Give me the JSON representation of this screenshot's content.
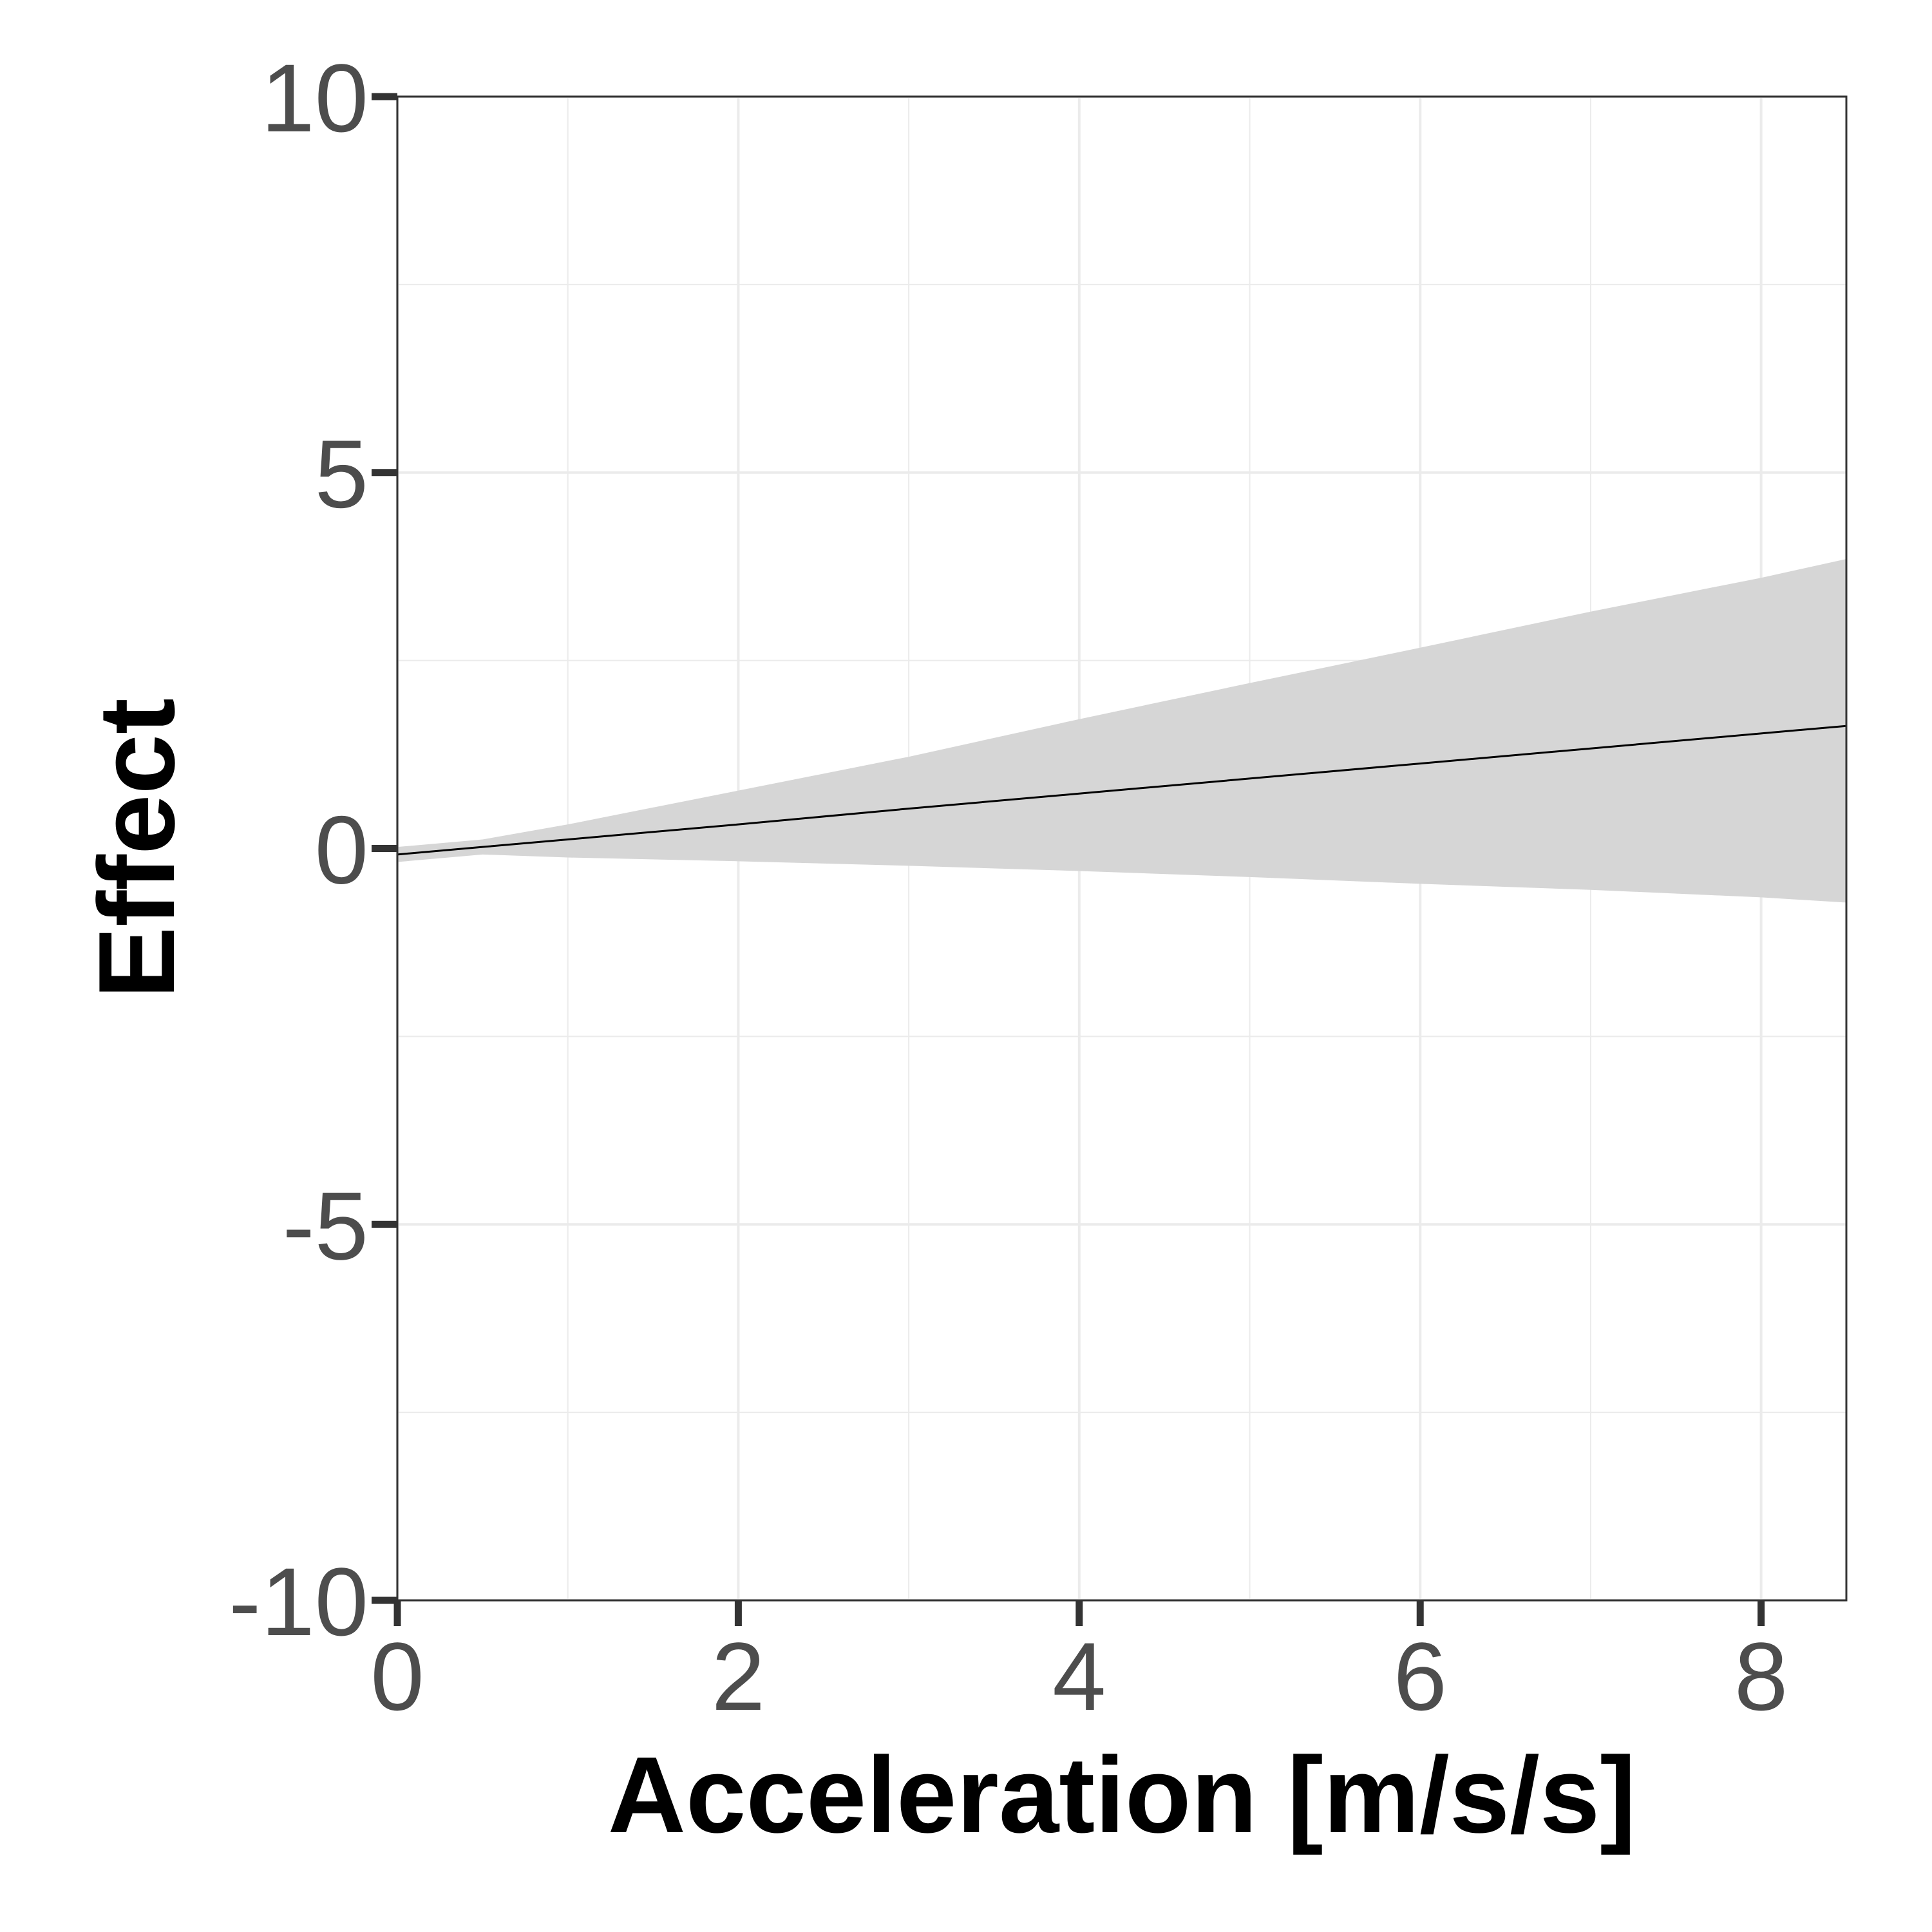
{
  "chart_data": {
    "type": "line",
    "title": "",
    "xlabel": "Acceleration [m/s/s]",
    "ylabel": "Effect",
    "xlim": [
      0,
      8.5
    ],
    "ylim": [
      -10,
      10
    ],
    "x_ticks": [
      0,
      2,
      4,
      6,
      8
    ],
    "y_ticks": [
      -10,
      -5,
      0,
      5,
      10
    ],
    "grid": true,
    "legend": "none",
    "series": [
      {
        "x": [
          0,
          0.5,
          1,
          2,
          3,
          4,
          5,
          6,
          7,
          8,
          8.5
        ],
        "values": [
          -0.08,
          0.02,
          0.12,
          0.32,
          0.53,
          0.73,
          0.93,
          1.13,
          1.33,
          1.53,
          1.63
        ]
      }
    ],
    "confidence_band": {
      "x": [
        0,
        0.5,
        1,
        2,
        3,
        4,
        5,
        6,
        7,
        8,
        8.5
      ],
      "upper": [
        0.02,
        0.12,
        0.32,
        0.77,
        1.22,
        1.72,
        2.2,
        2.67,
        3.15,
        3.6,
        3.85
      ],
      "lower": [
        -0.18,
        -0.08,
        -0.12,
        -0.17,
        -0.23,
        -0.3,
        -0.38,
        -0.47,
        -0.55,
        -0.65,
        -0.72
      ]
    },
    "colors": {
      "line": "#000000",
      "band": "#d6d6d6",
      "grid": "#ebebeb",
      "panel_border": "#333333",
      "tick_text": "#4d4d4d"
    }
  }
}
